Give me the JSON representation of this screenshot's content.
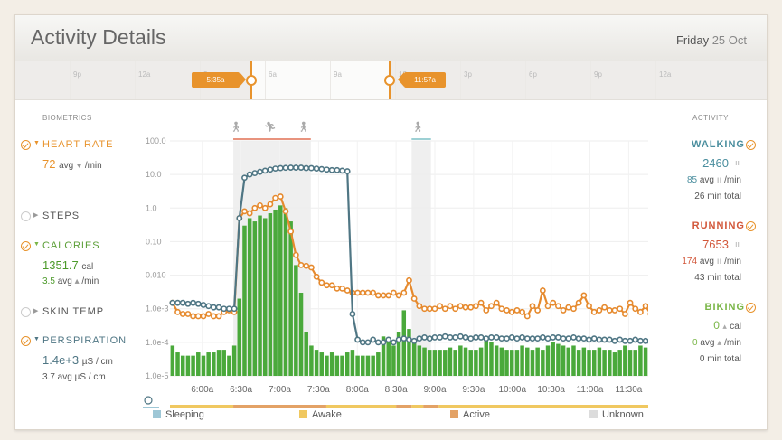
{
  "header": {
    "title": "Activity Details",
    "day": "Friday",
    "date": "25 Oct"
  },
  "timeline": {
    "hours": [
      "9p",
      "12a",
      "3a",
      "6a",
      "9a",
      "12p",
      "3p",
      "6p",
      "9p",
      "12a"
    ],
    "start_marker": "5:35a",
    "end_marker": "11:57a"
  },
  "biometrics": {
    "heading": "BIOMETRICS",
    "heart_rate": {
      "label": "HEART RATE",
      "value": "72",
      "avg": "avg",
      "unit": "/min",
      "icon": "heart-icon"
    },
    "steps": {
      "label": "STEPS"
    },
    "calories": {
      "label": "CALORIES",
      "value": "1351.7",
      "unit": "cal",
      "avg_value": "3.5",
      "avg": "avg",
      "avg_unit": "/min",
      "icon": "flame-icon"
    },
    "skin_temp": {
      "label": "SKIN TEMP"
    },
    "perspiration": {
      "label": "PERSPIRATION",
      "value": "1.4e+3",
      "unit": "µS / cm",
      "avg_line": "3.7 avg µS / cm"
    }
  },
  "activity": {
    "heading": "ACTIVITY",
    "walking": {
      "label": "WALKING",
      "value": "2460",
      "avg_value": "85",
      "avg": "avg",
      "avg_unit": "/min",
      "total": "26 min total",
      "color": "#4a8e9e",
      "icon": "footsteps-icon"
    },
    "running": {
      "label": "RUNNING",
      "value": "7653",
      "avg_value": "174",
      "avg": "avg",
      "avg_unit": "/min",
      "total": "43 min total",
      "color": "#d2573a",
      "icon": "footsteps-icon"
    },
    "biking": {
      "label": "BIKING",
      "value": "0",
      "unit": "cal",
      "avg_value": "0",
      "avg": "avg",
      "avg_unit": "/min",
      "total": "0 min total",
      "color": "#7ab648",
      "icon": "flame-icon"
    }
  },
  "legend": [
    {
      "label": "Sleeping",
      "color": "#9ec7d6"
    },
    {
      "label": "Awake",
      "color": "#f0c860"
    },
    {
      "label": "Active",
      "color": "#e3a266"
    },
    {
      "label": "Unknown",
      "color": "#dcdcdc"
    }
  ],
  "chart_data": {
    "type": "bar",
    "y_scale": "log",
    "ytick_labels": [
      "100.0",
      "10.0",
      "1.0",
      "0.10",
      "0.010",
      "1.0e-3",
      "1.0e-4",
      "1.0e-5"
    ],
    "ylim": [
      1e-05,
      100
    ],
    "xtick_labels": [
      "6:00a",
      "6:30a",
      "7:00a",
      "7:30a",
      "8:00a",
      "8:30a",
      "9:00a",
      "9:30a",
      "10:00a",
      "10:30a",
      "11:00a",
      "11:30a"
    ],
    "x_minutes_range": [
      "5:35a",
      "11:57a"
    ],
    "activity_regions": [
      {
        "start": "6:24a",
        "end": "7:24a"
      },
      {
        "start": "8:42a",
        "end": "8:57a"
      }
    ],
    "activity_icons": [
      "walking-person-icon",
      "running-person-icon",
      "walking-person-icon",
      "walking-person-icon"
    ],
    "state_bar": [
      {
        "state": "Awake",
        "start": "5:35a",
        "end": "6:24a"
      },
      {
        "state": "Active",
        "start": "6:24a",
        "end": "7:36a"
      },
      {
        "state": "Awake",
        "start": "7:36a",
        "end": "8:30a"
      },
      {
        "state": "Active",
        "start": "8:30a",
        "end": "8:42a"
      },
      {
        "state": "Awake",
        "start": "8:42a",
        "end": "8:51a"
      },
      {
        "state": "Active",
        "start": "8:51a",
        "end": "9:03a"
      },
      {
        "state": "Awake",
        "start": "9:03a",
        "end": "11:57a"
      }
    ],
    "series": [
      {
        "name": "STEPS",
        "color": "#4aa93b",
        "values": [
          8e-05,
          5e-05,
          4e-05,
          4e-05,
          4e-05,
          5e-05,
          4e-05,
          5e-05,
          5e-05,
          6e-05,
          6e-05,
          4e-05,
          8e-05,
          0.002,
          0.3,
          0.5,
          0.4,
          0.6,
          0.5,
          0.7,
          0.9,
          1.2,
          1.0,
          0.4,
          0.02,
          0.003,
          0.0002,
          8e-05,
          6e-05,
          5e-05,
          4e-05,
          5e-05,
          4e-05,
          4e-05,
          5e-05,
          6e-05,
          4e-05,
          4e-05,
          4e-05,
          4e-05,
          5e-05,
          0.00015,
          0.0001,
          8e-05,
          0.0002,
          0.0009,
          0.00025,
          0.0001,
          8e-05,
          7e-05,
          6e-05,
          6e-05,
          6e-05,
          6e-05,
          7e-05,
          6e-05,
          8e-05,
          7e-05,
          6e-05,
          6e-05,
          7e-05,
          0.00015,
          0.0001,
          8e-05,
          7e-05,
          6e-05,
          6e-05,
          6e-05,
          8e-05,
          7e-05,
          6e-05,
          7e-05,
          6e-05,
          8e-05,
          0.0001,
          9e-05,
          8e-05,
          7e-05,
          8e-05,
          6e-05,
          7e-05,
          6e-05,
          6e-05,
          7e-05,
          6e-05,
          6e-05,
          5e-05,
          6e-05,
          8e-05,
          6e-05,
          6e-05,
          8e-05,
          7e-05,
          6e-05,
          6e-05,
          6e-05
        ]
      },
      {
        "name": "HEART RATE",
        "color": "#e68a2e",
        "values": [
          0.0015,
          0.0008,
          0.0007,
          0.0007,
          0.0006,
          0.0006,
          0.0006,
          0.0007,
          0.0006,
          0.0006,
          0.0008,
          0.0009,
          0.0008,
          0.5,
          0.8,
          0.7,
          1.0,
          1.2,
          1.0,
          1.3,
          2.0,
          2.2,
          0.8,
          0.2,
          0.04,
          0.02,
          0.019,
          0.017,
          0.009,
          0.006,
          0.005,
          0.005,
          0.004,
          0.004,
          0.0035,
          0.003,
          0.003,
          0.003,
          0.003,
          0.003,
          0.0025,
          0.0025,
          0.0025,
          0.003,
          0.0025,
          0.003,
          0.007,
          0.002,
          0.0012,
          0.001,
          0.001,
          0.001,
          0.0012,
          0.001,
          0.0012,
          0.001,
          0.0012,
          0.0011,
          0.0011,
          0.0012,
          0.0015,
          0.0009,
          0.0012,
          0.0015,
          0.001,
          0.0009,
          0.0008,
          0.0009,
          0.0008,
          0.0006,
          0.0012,
          0.0009,
          0.0035,
          0.0012,
          0.0015,
          0.0012,
          0.0009,
          0.0011,
          0.001,
          0.0015,
          0.0025,
          0.0012,
          0.0008,
          0.0009,
          0.0011,
          0.0009,
          0.0009,
          0.001,
          0.0007,
          0.0015,
          0.001,
          0.0008,
          0.0012,
          0.0007,
          0.003,
          0.0009,
          0.0012,
          0.001
        ]
      },
      {
        "name": "PERSPIRATION",
        "color": "#4f7684",
        "values": [
          0.0015,
          0.0015,
          0.0015,
          0.0014,
          0.0015,
          0.0014,
          0.0013,
          0.0012,
          0.0011,
          0.0011,
          0.001,
          0.001,
          0.001,
          0.5,
          8,
          10,
          11,
          12,
          13,
          14,
          15,
          15.5,
          15.8,
          16,
          16,
          16,
          15.5,
          15.5,
          15,
          14.5,
          14,
          13.5,
          13.5,
          13,
          12.5,
          0.0007,
          0.00012,
          0.0001,
          0.0001,
          0.00012,
          0.0001,
          0.0001,
          0.00012,
          0.0001,
          0.00012,
          0.00013,
          0.00012,
          0.00011,
          0.00013,
          0.00014,
          0.00013,
          0.00014,
          0.00014,
          0.00015,
          0.00014,
          0.00014,
          0.00015,
          0.00014,
          0.00013,
          0.00014,
          0.00014,
          0.00013,
          0.00014,
          0.00014,
          0.00013,
          0.00013,
          0.00014,
          0.00013,
          0.00014,
          0.00013,
          0.00013,
          0.00013,
          0.00014,
          0.00013,
          0.00014,
          0.00014,
          0.00013,
          0.00013,
          0.00014,
          0.00013,
          0.00013,
          0.00012,
          0.00013,
          0.00012,
          0.00012,
          0.00012,
          0.00011,
          0.00012,
          0.00011,
          0.00011,
          0.00012,
          0.00011,
          0.00011,
          0.0001,
          0.0001,
          0.0001
        ]
      }
    ]
  }
}
